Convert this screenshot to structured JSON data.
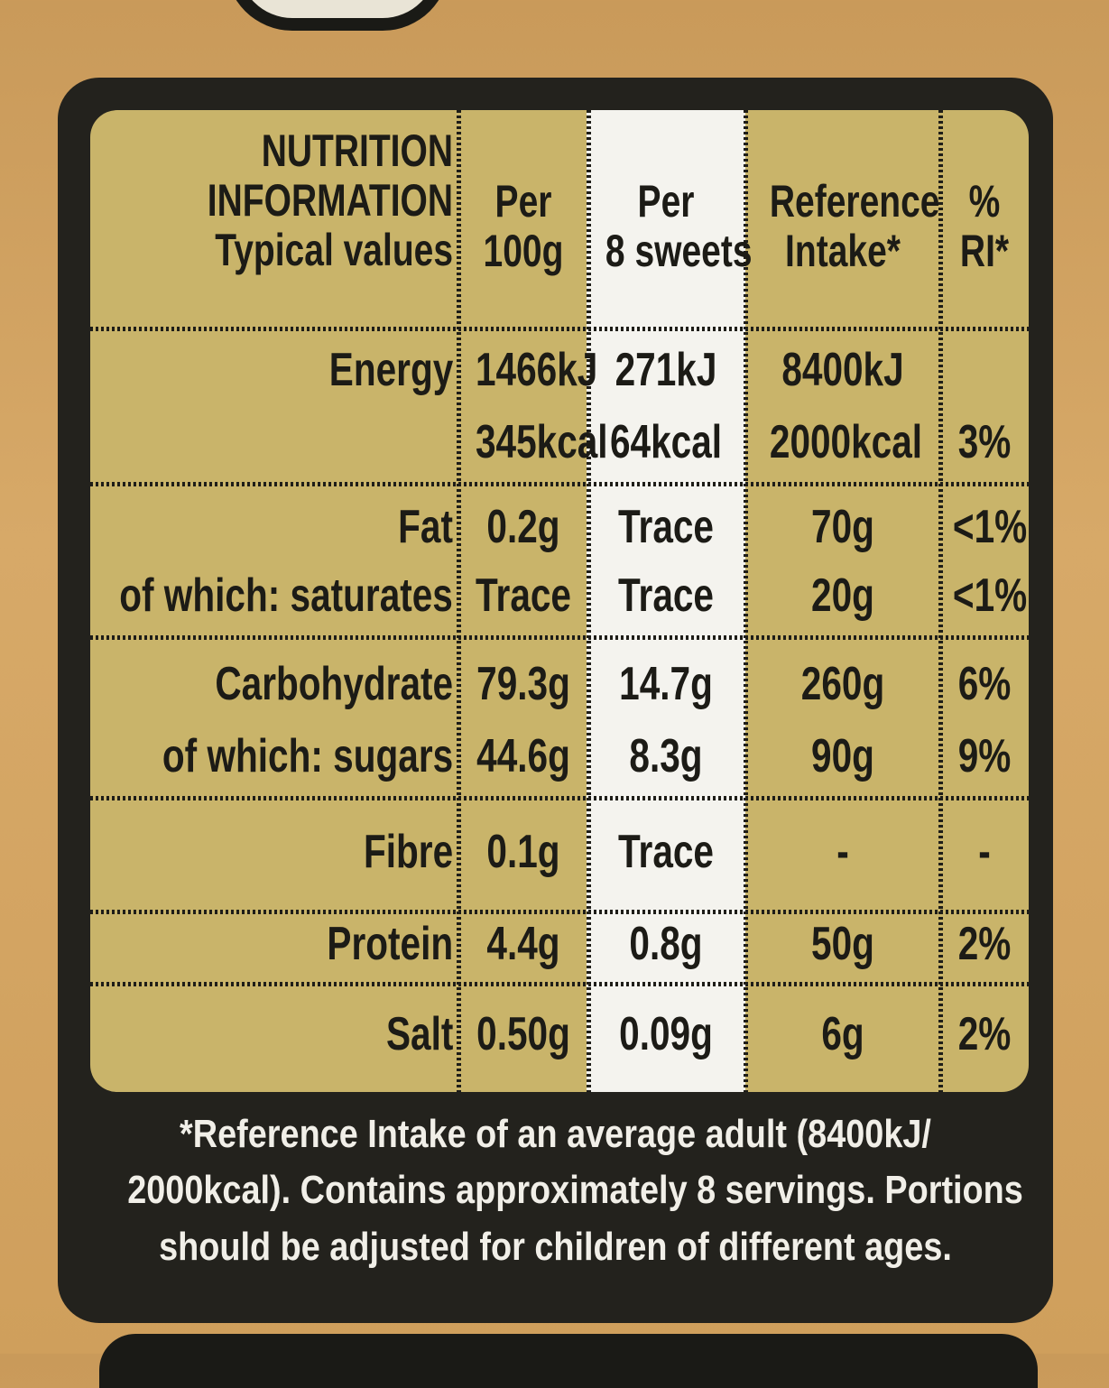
{
  "header": {
    "title_line1": "NUTRITION",
    "title_line2": "INFORMATION",
    "title_line3": "Typical values",
    "per100_line1": "Per",
    "per100_line2": "100g",
    "perserving_line1": "Per",
    "perserving_line2": "8 sweets",
    "ri_line1": "Reference",
    "ri_line2": "Intake*",
    "pct_line1": "%",
    "pct_line2": "RI*"
  },
  "rows": [
    {
      "label": "Energy",
      "per100": "1466kJ",
      "perserving": "271kJ",
      "ri": "8400kJ",
      "pct": ""
    },
    {
      "label": "",
      "per100": "345kcal",
      "perserving": "64kcal",
      "ri": "2000kcal",
      "pct": "3%"
    },
    {
      "label": "Fat",
      "per100": "0.2g",
      "perserving": "Trace",
      "ri": "70g",
      "pct": "<1%"
    },
    {
      "label": "of which: saturates",
      "per100": "Trace",
      "perserving": "Trace",
      "ri": "20g",
      "pct": "<1%"
    },
    {
      "label": "Carbohydrate",
      "per100": "79.3g",
      "perserving": "14.7g",
      "ri": "260g",
      "pct": "6%"
    },
    {
      "label": "of which: sugars",
      "per100": "44.6g",
      "perserving": "8.3g",
      "ri": "90g",
      "pct": "9%"
    },
    {
      "label": "Fibre",
      "per100": "0.1g",
      "perserving": "Trace",
      "ri": "-",
      "pct": "-"
    },
    {
      "label": "Protein",
      "per100": "4.4g",
      "perserving": "0.8g",
      "ri": "50g",
      "pct": "2%"
    },
    {
      "label": "Salt",
      "per100": "0.50g",
      "perserving": "0.09g",
      "ri": "6g",
      "pct": "2%"
    }
  ],
  "footnote": {
    "line1": "*Reference Intake of an average adult (8400kJ/",
    "line2": "2000kcal). Contains approximately 8 servings. Portions",
    "line3": "should be adjusted for children of different ages."
  },
  "colors": {
    "table_bg": "#c9b46a",
    "serving_col_bg": "#f4f3ee",
    "panel_bg": "#23221d",
    "package_bg": "#d7a968"
  }
}
